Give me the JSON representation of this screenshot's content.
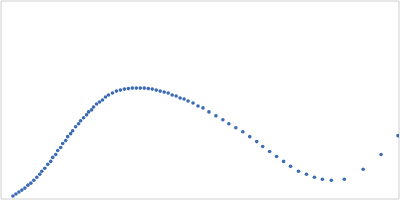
{
  "chart_data": {
    "type": "scatter",
    "xlim": [
      -1.15,
      2.85
    ],
    "ylim": [
      -1,
      1
    ],
    "xticks": [
      -1.15,
      0,
      2.85
    ],
    "yticks": [
      -1,
      0,
      1
    ],
    "grid": true,
    "tick_labels": false,
    "color": "#3b6bb5",
    "marker": "circle",
    "x": [
      -1.03,
      -1.0,
      -0.97,
      -0.94,
      -0.91,
      -0.88,
      -0.85,
      -0.82,
      -0.79,
      -0.76,
      -0.74,
      -0.71,
      -0.68,
      -0.65,
      -0.63,
      -0.6,
      -0.58,
      -0.55,
      -0.53,
      -0.5,
      -0.48,
      -0.45,
      -0.43,
      -0.4,
      -0.37,
      -0.35,
      -0.32,
      -0.29,
      -0.27,
      -0.24,
      -0.22,
      -0.19,
      -0.16,
      -0.13,
      -0.1,
      -0.07,
      -0.03,
      0.01,
      0.05,
      0.09,
      0.13,
      0.17,
      0.21,
      0.25,
      0.29,
      0.33,
      0.37,
      0.41,
      0.45,
      0.49,
      0.53,
      0.57,
      0.61,
      0.65,
      0.69,
      0.73,
      0.78,
      0.83,
      0.88,
      0.94,
      1.01,
      1.08,
      1.14,
      1.21,
      1.28,
      1.35,
      1.42,
      1.48,
      1.55,
      1.62,
      1.69,
      1.76,
      1.84,
      1.92,
      2.0,
      2.08,
      2.17,
      2.3,
      2.49,
      2.67,
      2.84
    ],
    "values": [
      -0.97,
      -0.95,
      -0.93,
      -0.91,
      -0.89,
      -0.86,
      -0.84,
      -0.81,
      -0.78,
      -0.75,
      -0.72,
      -0.69,
      -0.65,
      -0.62,
      -0.58,
      -0.55,
      -0.51,
      -0.48,
      -0.44,
      -0.41,
      -0.37,
      -0.34,
      -0.31,
      -0.27,
      -0.24,
      -0.21,
      -0.18,
      -0.15,
      -0.12,
      -0.1,
      -0.07,
      -0.04,
      -0.02,
      0,
      0.03,
      0.05,
      0.07,
      0.09,
      0.1,
      0.11,
      0.115,
      0.12,
      0.12,
      0.12,
      0.12,
      0.115,
      0.11,
      0.1,
      0.09,
      0.08,
      0.07,
      0.05,
      0.04,
      0.02,
      0.01,
      -0.01,
      -0.03,
      -0.06,
      -0.08,
      -0.12,
      -0.16,
      -0.2,
      -0.24,
      -0.28,
      -0.32,
      -0.37,
      -0.42,
      -0.47,
      -0.52,
      -0.57,
      -0.62,
      -0.67,
      -0.72,
      -0.75,
      -0.78,
      -0.8,
      -0.81,
      -0.8,
      -0.7,
      -0.55,
      -0.36
    ]
  }
}
